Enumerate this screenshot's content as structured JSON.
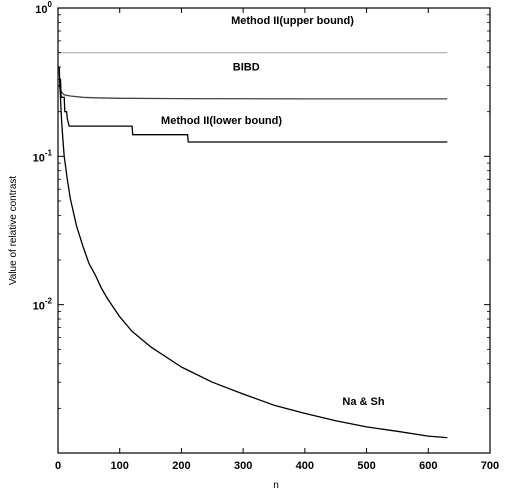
{
  "chart_data": {
    "type": "line",
    "xlabel": "n",
    "ylabel": "Value of relative contrast",
    "xlim": [
      0,
      700
    ],
    "ylim": [
      0.001,
      1
    ],
    "yscale": "log",
    "x_ticks": [
      0,
      100,
      200,
      300,
      400,
      500,
      600,
      700
    ],
    "x_tick_labels": [
      "0",
      "100",
      "200",
      "300",
      "400",
      "500",
      "600",
      "700"
    ],
    "y_tick_labels": [
      {
        "value": 1,
        "base": "10",
        "exp": "0"
      },
      {
        "value": 0.1,
        "base": "10",
        "exp": "-1"
      },
      {
        "value": 0.01,
        "base": "10",
        "exp": "-2"
      }
    ],
    "grid": false,
    "legend": "none",
    "series": [
      {
        "name": "Method II(upper bound)",
        "color": "#bbbbbb",
        "x": [
          2,
          3,
          4,
          5,
          6,
          8,
          630
        ],
        "y": [
          0.5,
          0.5,
          0.5,
          0.5,
          0.5,
          0.5,
          0.5
        ],
        "label_at": {
          "x": 380,
          "y": 0.78
        }
      },
      {
        "name": "BIBD",
        "color": "#444444",
        "x": [
          2,
          4,
          6,
          10,
          20,
          40,
          60,
          100,
          200,
          400,
          630
        ],
        "y": [
          0.3,
          0.28,
          0.27,
          0.26,
          0.255,
          0.25,
          0.248,
          0.246,
          0.245,
          0.244,
          0.244
        ],
        "label_at": {
          "x": 305,
          "y": 0.38
        }
      },
      {
        "name": "Method II(lower bound)",
        "color": "#000000",
        "x": [
          2,
          4,
          5,
          6,
          10,
          11,
          14,
          15,
          18,
          120,
          121,
          210,
          211,
          630
        ],
        "y": [
          0.33,
          0.33,
          0.25,
          0.25,
          0.25,
          0.2,
          0.2,
          0.18,
          0.16,
          0.16,
          0.14,
          0.14,
          0.125,
          0.125
        ],
        "label_at": {
          "x": 265,
          "y": 0.165
        }
      },
      {
        "name": "Na & Sh",
        "color": "#000000",
        "x": [
          2,
          3,
          4,
          5,
          6,
          8,
          10,
          15,
          20,
          30,
          40,
          50,
          60,
          70,
          80,
          100,
          120,
          150,
          200,
          250,
          300,
          350,
          400,
          450,
          500,
          550,
          600,
          630
        ],
        "y": [
          0.4,
          0.3,
          0.25,
          0.2,
          0.17,
          0.13,
          0.1,
          0.07,
          0.052,
          0.034,
          0.025,
          0.019,
          0.016,
          0.013,
          0.011,
          0.0083,
          0.0066,
          0.0052,
          0.0038,
          0.003,
          0.0025,
          0.0021,
          0.00185,
          0.00165,
          0.0015,
          0.0014,
          0.0013,
          0.00127
        ],
        "label_at": {
          "x": 495,
          "y": 0.0021
        }
      }
    ]
  }
}
